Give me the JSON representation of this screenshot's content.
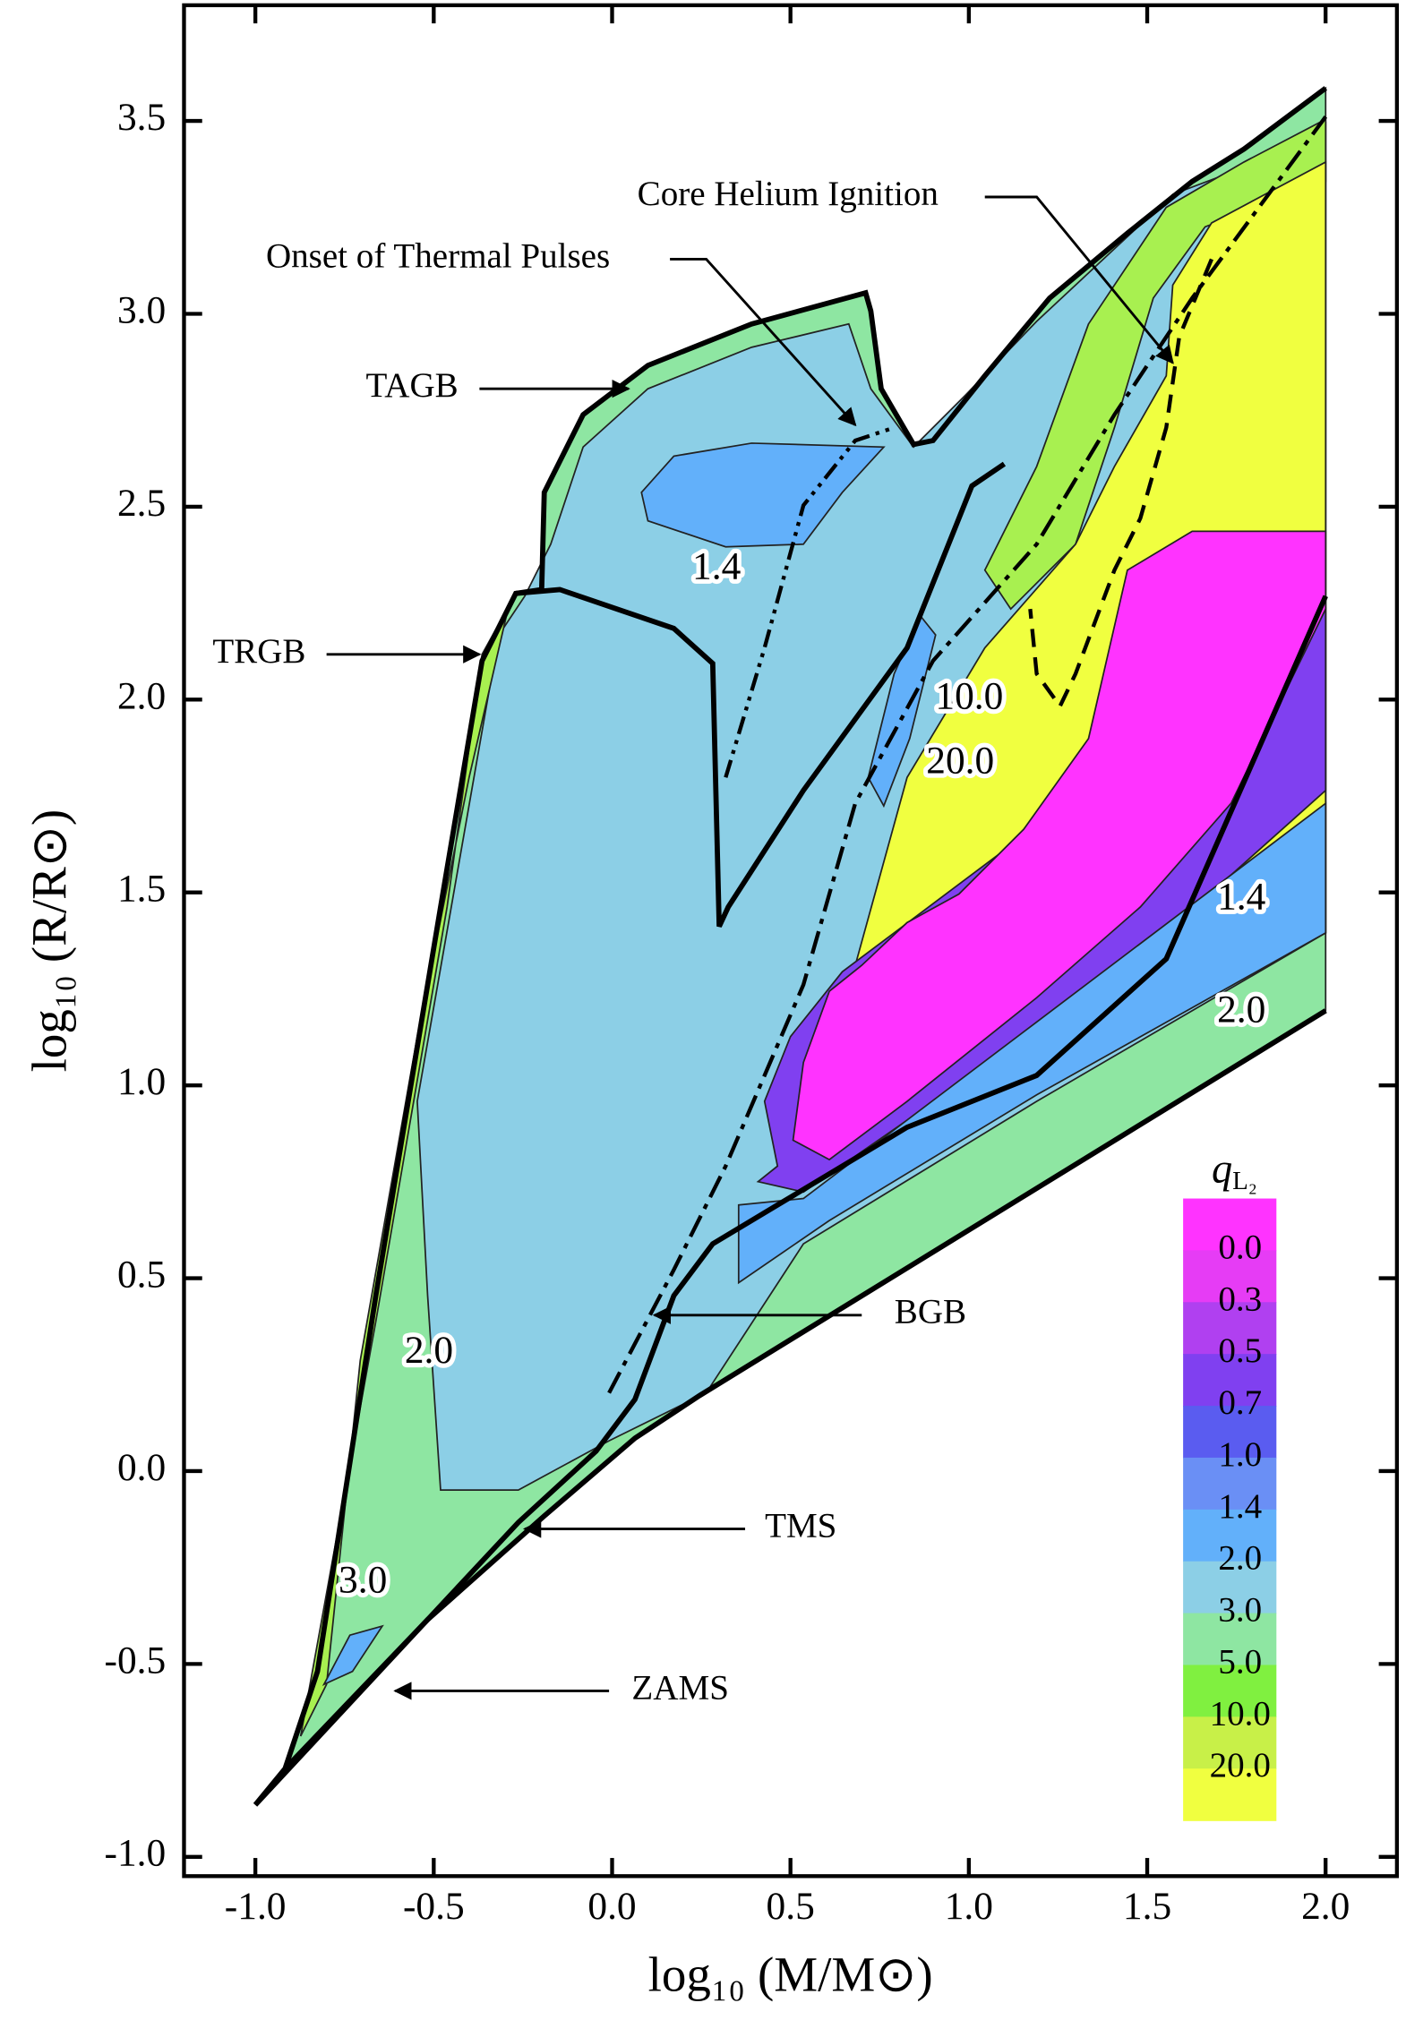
{
  "chart_data": {
    "type": "contour",
    "xlabel": "log₁₀ (M/M⊙)",
    "ylabel": "log₁₀ (R/R⊙)",
    "xlim": [
      -1.2,
      2.2
    ],
    "ylim": [
      -1.05,
      3.8
    ],
    "xticks": [
      {
        "value": -1.0,
        "label": "-1.0"
      },
      -0.5,
      {
        "value": 0,
        "label": "0.0"
      },
      0.5,
      {
        "value": 1.0,
        "label": "1.0"
      },
      1.5,
      {
        "value": 2.0,
        "label": "2.0"
      }
    ],
    "yticks": [
      {
        "value": -1.0,
        "label": "-1.0"
      },
      -0.5,
      {
        "value": 0,
        "label": "0.0"
      },
      0.5,
      {
        "value": 1.0,
        "label": "1.0"
      },
      1.5,
      {
        "value": 2.0,
        "label": "2.0"
      },
      2.5,
      {
        "value": 3.0,
        "label": "3.0"
      },
      3.5
    ],
    "annotations": [
      "Core Helium Ignition",
      "Onset of Thermal Pulses",
      "TAGB",
      "TRGB",
      "BGB",
      "TMS",
      "ZAMS"
    ],
    "contour_labels": [
      "1.4",
      "10.0",
      "20.0",
      "1.4",
      "2.0",
      "2.0",
      "3.0"
    ],
    "colorbar": {
      "title": "q",
      "title_sub": "L₂",
      "levels": [
        {
          "value": 0,
          "label": "0.0"
        },
        0.3,
        0.5,
        0.7,
        {
          "value": 1.0,
          "label": "1.0"
        },
        1.4,
        {
          "value": 2.0,
          "label": "2.0"
        },
        {
          "value": 3.0,
          "label": "3.0"
        },
        {
          "value": 5.0,
          "label": "5.0"
        },
        {
          "value": 10.0,
          "label": "10.0"
        },
        {
          "value": 20.0,
          "label": "20.0"
        }
      ],
      "colors": [
        "#ff33ff",
        "#e63cf5",
        "#b040f0",
        "#8040f0",
        "#5a5cf0",
        "#6a8ff5",
        "#62b0fa",
        "#8ccfe6",
        "#8ee6a2",
        "#80f040",
        "#c8f048",
        "#f0ff40"
      ]
    }
  }
}
